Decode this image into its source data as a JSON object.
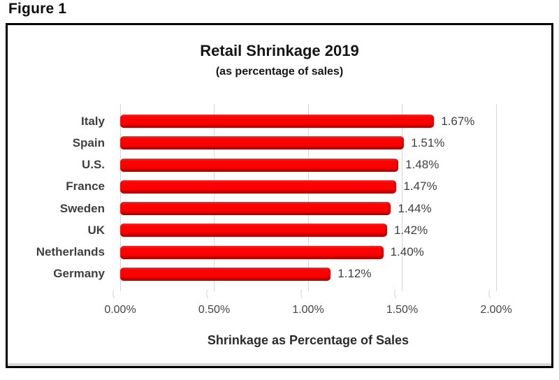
{
  "figure_label": "Figure 1",
  "chart_data": {
    "type": "bar",
    "orientation": "horizontal",
    "title": "Retail Shrinkage 2019",
    "subtitle": "(as percentage of sales)",
    "categories": [
      "Italy",
      "Spain",
      "U.S.",
      "France",
      "Sweden",
      "UK",
      "Netherlands",
      "Germany"
    ],
    "values": [
      1.67,
      1.51,
      1.48,
      1.47,
      1.44,
      1.42,
      1.4,
      1.12
    ],
    "value_labels": [
      "1.67%",
      "1.51%",
      "1.48%",
      "1.47%",
      "1.44%",
      "1.42%",
      "1.40%",
      "1.12%"
    ],
    "xlabel": "Shrinkage as Percentage of Sales",
    "x_ticks": [
      "0.00%",
      "0.50%",
      "1.00%",
      "1.50%",
      "2.00%"
    ],
    "xlim": [
      0,
      2.0
    ],
    "grid": true,
    "legend": false,
    "bar_color": "#FB0000",
    "bar_edge_color": "#A40B0B",
    "gridline_color": "#D6D6D6",
    "label_color": "#3F3F3F",
    "title_color": "#151515"
  }
}
